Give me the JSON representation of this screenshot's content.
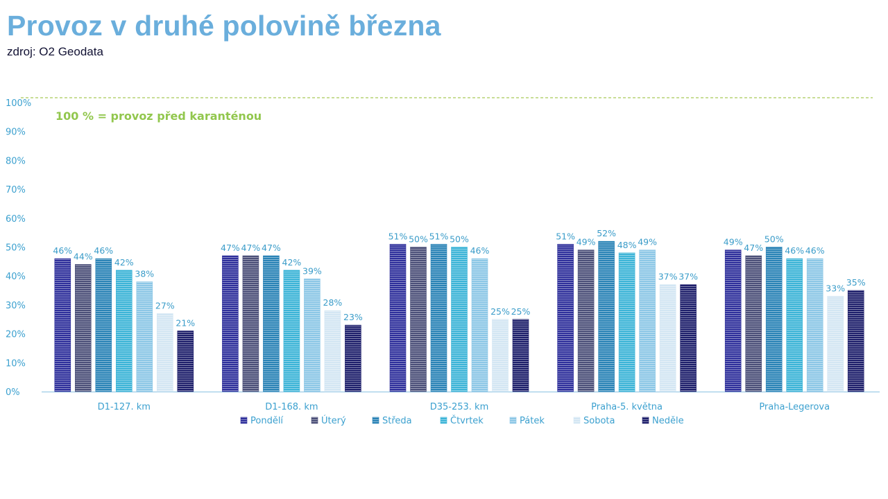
{
  "header": {
    "title": "Provoz v druhé polovině března",
    "subtitle": "zdroj: O2 Geodata"
  },
  "colors": {
    "title": "#6aaedc",
    "axis_text": "#3ba0cf",
    "reference_line": "#a8c957",
    "reference_text": "#92c74e",
    "series": [
      "#2e2f9b",
      "#4b4f78",
      "#2a83b6",
      "#3cb4d7",
      "#8cc7e6",
      "#d3e6f3",
      "#1e1f6b"
    ]
  },
  "chart_data": {
    "type": "bar",
    "title": "Provoz v druhé polovině března",
    "subtitle": "zdroj: O2 Geodata",
    "categories": [
      "D1-127. km",
      "D1-168. km",
      "D35-253. km",
      "Praha-5. května",
      "Praha-Legerova"
    ],
    "series": [
      {
        "name": "Pondělí",
        "values": [
          46,
          47,
          51,
          51,
          49
        ]
      },
      {
        "name": "Úterý",
        "values": [
          44,
          47,
          50,
          49,
          47
        ]
      },
      {
        "name": "Středa",
        "values": [
          46,
          47,
          51,
          52,
          50
        ]
      },
      {
        "name": "Čtvrtek",
        "values": [
          42,
          42,
          50,
          48,
          46
        ]
      },
      {
        "name": "Pátek",
        "values": [
          38,
          39,
          46,
          49,
          46
        ]
      },
      {
        "name": "Sobota",
        "values": [
          27,
          28,
          25,
          37,
          33
        ]
      },
      {
        "name": "Neděle",
        "values": [
          21,
          23,
          25,
          37,
          35
        ]
      }
    ],
    "value_suffix": "%",
    "ylim": [
      0,
      100
    ],
    "yticks": [
      "0%",
      "10%",
      "20%",
      "30%",
      "40%",
      "50%",
      "60%",
      "70%",
      "80%",
      "90%",
      "100%"
    ],
    "reference_line": {
      "value": 100,
      "label": "100 % = provoz  před karanténou"
    },
    "legend_position": "bottom",
    "grid": false
  }
}
